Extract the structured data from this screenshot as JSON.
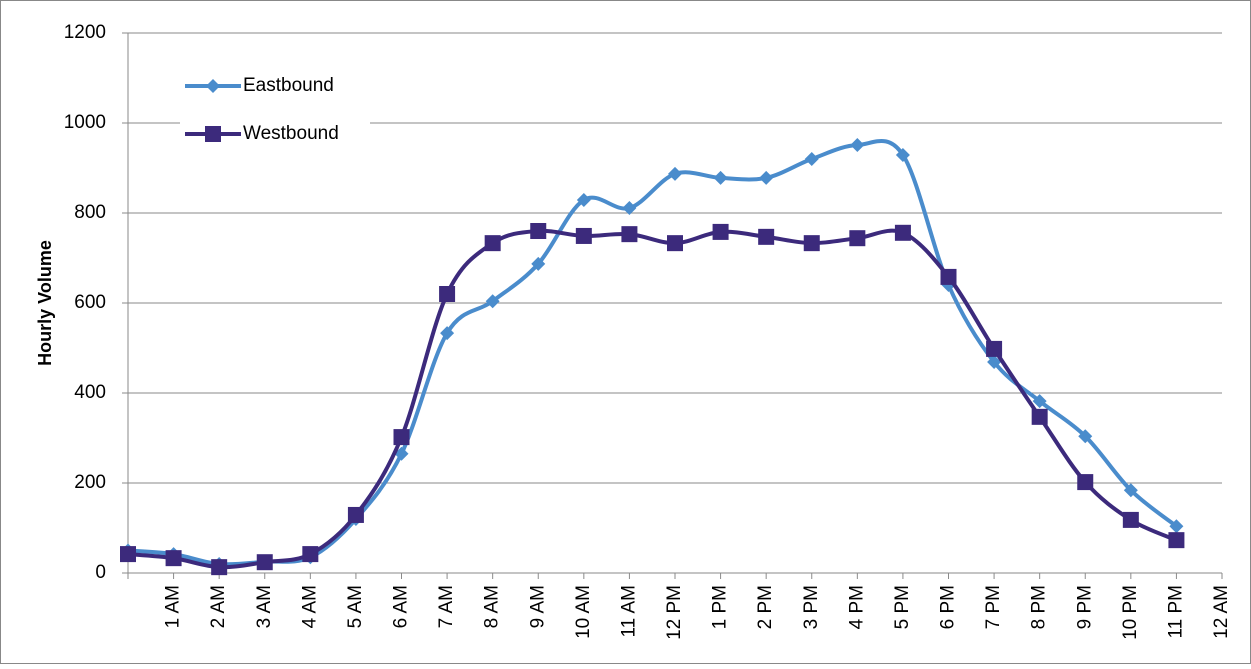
{
  "chart_data": {
    "type": "line",
    "y_label": "Hourly Volume",
    "categories": [
      null,
      "1 AM",
      "2 AM",
      "3 AM",
      "4 AM",
      "5 AM",
      "6 AM",
      "7 AM",
      "8 AM",
      "9 AM",
      "10 AM",
      "11 AM",
      "12 PM",
      "1 PM",
      "2 PM",
      "3 PM",
      "4 PM",
      "5 PM",
      "6 PM",
      "7 PM",
      "8 PM",
      "9 PM",
      "10 PM",
      "11 PM",
      "12 AM"
    ],
    "series": [
      {
        "name": "Eastbound",
        "color": "#4a8ccc",
        "marker": "diamond",
        "values": [
          50,
          42,
          20,
          25,
          35,
          120,
          265,
          533,
          604,
          687,
          829,
          811,
          887,
          878,
          878,
          920,
          951,
          929,
          640,
          469,
          382,
          304,
          184,
          104,
          null
        ]
      },
      {
        "name": "Westbound",
        "color": "#3c2a7c",
        "marker": "square",
        "values": [
          42,
          33,
          13,
          24,
          42,
          129,
          302,
          620,
          733,
          760,
          749,
          753,
          733,
          758,
          747,
          733,
          744,
          756,
          658,
          498,
          347,
          202,
          118,
          73,
          null
        ]
      }
    ],
    "ylim": [
      0,
      1200
    ],
    "yticks": [
      0,
      200,
      400,
      600,
      800,
      1000,
      1200
    ],
    "grid": true,
    "smooth": true,
    "legend": "top-left"
  }
}
